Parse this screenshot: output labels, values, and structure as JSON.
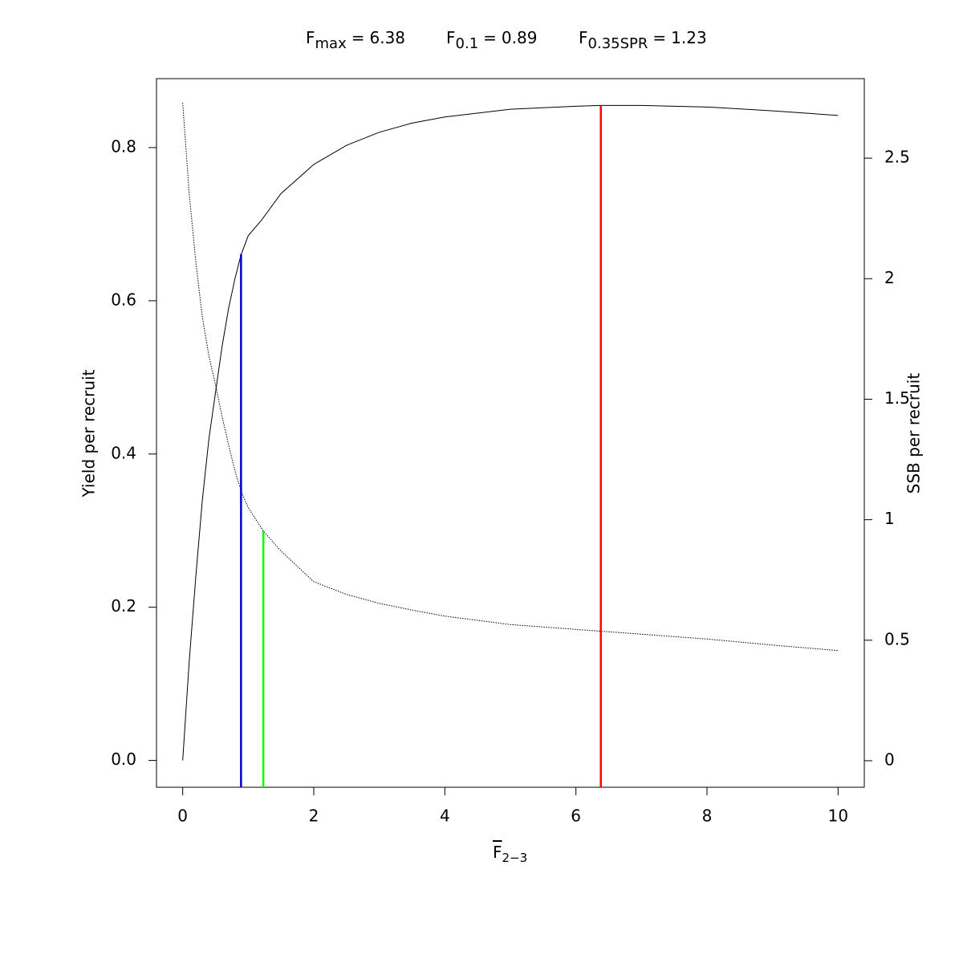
{
  "chart_data": {
    "type": "line",
    "title_items": [
      {
        "symbol": "F",
        "subscript": "max",
        "relation": "=",
        "value": 6.38
      },
      {
        "symbol": "F",
        "subscript": "0.1",
        "relation": "=",
        "value": 0.89
      },
      {
        "symbol": "F",
        "subscript": "0.35SPR",
        "relation": "=",
        "value": 1.23
      }
    ],
    "x_label": {
      "symbol": "F",
      "subscript": "2−3"
    },
    "y_label": "Yield per recruit",
    "y2_label": "SSB per recruit",
    "xlim": [
      -0.4,
      10.4
    ],
    "ylim": [
      -0.035,
      0.89
    ],
    "y2lim": [
      -0.11,
      2.83
    ],
    "xticks": [
      0,
      2,
      4,
      6,
      8,
      10
    ],
    "yticks": [
      {
        "value": 0,
        "label": "0.0"
      },
      0.2,
      0.4,
      0.6,
      0.8
    ],
    "y2ticks": [
      0,
      0.5,
      1,
      1.5,
      2,
      2.5
    ],
    "grid": false,
    "series": [
      {
        "color": "#000000",
        "style": "solid",
        "x": [
          0,
          0.1,
          0.2,
          0.3,
          0.4,
          0.5,
          0.6,
          0.7,
          0.8,
          0.89,
          1,
          1.2,
          1.5,
          2,
          2.5,
          3,
          3.5,
          4,
          5,
          6,
          6.38,
          7,
          8,
          9,
          10
        ],
        "values": [
          0,
          0.13,
          0.24,
          0.34,
          0.42,
          0.48,
          0.54,
          0.59,
          0.63,
          0.66,
          0.685,
          0.705,
          0.74,
          0.778,
          0.803,
          0.82,
          0.832,
          0.84,
          0.85,
          0.854,
          0.855,
          0.855,
          0.853,
          0.848,
          0.842
        ]
      },
      {
        "color": "#000000",
        "style": "dotted",
        "axis": "y2",
        "x": [
          0,
          0.1,
          0.2,
          0.3,
          0.4,
          0.5,
          0.6,
          0.7,
          0.8,
          0.89,
          1,
          1.23,
          1.5,
          2,
          2.5,
          3,
          3.5,
          4,
          5,
          6,
          7,
          8,
          9,
          10
        ],
        "values": [
          2.73,
          2.35,
          2.07,
          1.84,
          1.68,
          1.56,
          1.43,
          1.31,
          1.2,
          1.12,
          1.05,
          0.953,
          0.87,
          0.743,
          0.69,
          0.653,
          0.625,
          0.6,
          0.565,
          0.545,
          0.525,
          0.505,
          0.48,
          0.457
        ]
      }
    ],
    "reference_lines": [
      {
        "color": "#ff0000",
        "top": 0.855
      },
      {
        "color": "#0000cd",
        "top": 0.661
      },
      {
        "color": "#00ff00",
        "top": 0.953,
        "axis": "y2"
      }
    ]
  }
}
